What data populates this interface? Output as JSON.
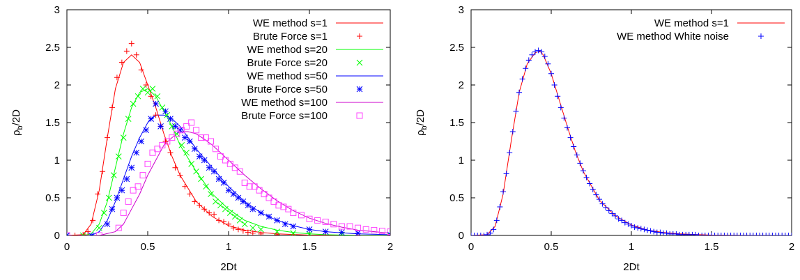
{
  "chart_data": [
    {
      "type": "line",
      "title": "",
      "xlabel": "2Dt",
      "ylabel_main": "ρ",
      "ylabel_sub": "b",
      "ylabel_tail": "/2D",
      "xlim": [
        0,
        2
      ],
      "ylim": [
        0,
        3
      ],
      "xticks": [
        "0",
        "0.5",
        "1",
        "1.5",
        "2"
      ],
      "yticks": [
        "0",
        "0.5",
        "1",
        "1.5",
        "2",
        "2.5",
        "3"
      ],
      "grid": false,
      "legend_position": "top-right",
      "series": [
        {
          "name": "WE method s=1",
          "kind": "line",
          "color": "#ff0000",
          "x": [
            0,
            0.1,
            0.15,
            0.2,
            0.25,
            0.3,
            0.35,
            0.4,
            0.45,
            0.5,
            0.55,
            0.6,
            0.65,
            0.7,
            0.8,
            0.9,
            1.0,
            1.1,
            1.2,
            1.3,
            1.5,
            1.7,
            2.0
          ],
          "y": [
            0,
            0.01,
            0.15,
            0.6,
            1.3,
            1.95,
            2.3,
            2.4,
            2.3,
            2.0,
            1.7,
            1.35,
            1.05,
            0.8,
            0.45,
            0.25,
            0.13,
            0.07,
            0.04,
            0.02,
            0.005,
            0.001,
            0
          ]
        },
        {
          "name": "Brute Force s=1",
          "kind": "plus",
          "color": "#ff0000",
          "x": [
            0,
            0.05,
            0.1,
            0.13,
            0.16,
            0.19,
            0.22,
            0.25,
            0.28,
            0.31,
            0.34,
            0.37,
            0.4,
            0.43,
            0.46,
            0.49,
            0.52,
            0.55,
            0.58,
            0.61,
            0.64,
            0.67,
            0.7,
            0.73,
            0.76,
            0.79,
            0.82,
            0.85,
            0.88,
            0.91,
            0.94,
            0.97,
            1.0,
            1.03,
            1.06,
            1.09,
            1.12,
            1.15,
            1.2,
            1.3,
            1.4,
            1.6,
            1.8,
            2.0
          ],
          "y": [
            0,
            0,
            0.01,
            0.05,
            0.2,
            0.55,
            0.85,
            1.3,
            1.7,
            2.1,
            2.3,
            2.45,
            2.55,
            2.4,
            2.2,
            2.0,
            1.85,
            1.6,
            1.45,
            1.25,
            1.1,
            0.9,
            0.8,
            0.65,
            0.55,
            0.45,
            0.4,
            0.35,
            0.3,
            0.28,
            0.2,
            0.18,
            0.15,
            0.1,
            0.08,
            0.06,
            0.04,
            0.03,
            0.02,
            0.01,
            0,
            0,
            0,
            0
          ]
        },
        {
          "name": "WE method s=20",
          "kind": "line",
          "color": "#00ff00",
          "x": [
            0,
            0.1,
            0.15,
            0.2,
            0.25,
            0.3,
            0.35,
            0.4,
            0.45,
            0.5,
            0.55,
            0.6,
            0.65,
            0.7,
            0.8,
            0.9,
            1.0,
            1.1,
            1.2,
            1.3,
            1.4,
            1.5,
            1.6,
            1.8,
            2.0
          ],
          "y": [
            0,
            0,
            0.02,
            0.15,
            0.45,
            0.9,
            1.35,
            1.7,
            1.9,
            1.95,
            1.85,
            1.65,
            1.45,
            1.2,
            0.85,
            0.55,
            0.35,
            0.2,
            0.12,
            0.07,
            0.04,
            0.02,
            0.01,
            0,
            0
          ]
        },
        {
          "name": "Brute Force s=20",
          "kind": "x",
          "color": "#00ff00",
          "x": [
            0,
            0.1,
            0.2,
            0.23,
            0.26,
            0.29,
            0.32,
            0.35,
            0.38,
            0.41,
            0.44,
            0.47,
            0.5,
            0.53,
            0.56,
            0.59,
            0.62,
            0.65,
            0.68,
            0.71,
            0.74,
            0.77,
            0.8,
            0.83,
            0.86,
            0.89,
            0.92,
            0.95,
            0.98,
            1.01,
            1.04,
            1.07,
            1.1,
            1.15,
            1.2,
            1.3,
            1.4,
            1.5,
            1.7,
            2.0
          ],
          "y": [
            0,
            0,
            0.1,
            0.3,
            0.5,
            0.8,
            1.05,
            1.3,
            1.55,
            1.75,
            1.85,
            1.95,
            1.9,
            1.95,
            1.85,
            1.7,
            1.6,
            1.45,
            1.35,
            1.2,
            1.1,
            0.95,
            0.85,
            0.75,
            0.65,
            0.55,
            0.45,
            0.4,
            0.35,
            0.3,
            0.25,
            0.2,
            0.15,
            0.1,
            0.08,
            0.05,
            0.03,
            0.02,
            0.01,
            0
          ]
        },
        {
          "name": "WE method s=50",
          "kind": "line",
          "color": "#0000ff",
          "x": [
            0,
            0.15,
            0.2,
            0.25,
            0.3,
            0.35,
            0.4,
            0.45,
            0.5,
            0.55,
            0.6,
            0.65,
            0.7,
            0.75,
            0.8,
            0.9,
            1.0,
            1.1,
            1.2,
            1.3,
            1.4,
            1.5,
            1.6,
            1.8,
            2.0
          ],
          "y": [
            0,
            0,
            0.05,
            0.2,
            0.45,
            0.75,
            1.05,
            1.3,
            1.5,
            1.6,
            1.6,
            1.55,
            1.45,
            1.3,
            1.15,
            0.9,
            0.65,
            0.45,
            0.3,
            0.2,
            0.13,
            0.08,
            0.05,
            0.02,
            0.01
          ]
        },
        {
          "name": "Brute Force s=50",
          "kind": "star",
          "color": "#0000ff",
          "x": [
            0,
            0.15,
            0.25,
            0.28,
            0.31,
            0.34,
            0.37,
            0.4,
            0.43,
            0.46,
            0.49,
            0.52,
            0.55,
            0.58,
            0.61,
            0.64,
            0.67,
            0.7,
            0.73,
            0.76,
            0.79,
            0.82,
            0.85,
            0.88,
            0.91,
            0.94,
            0.97,
            1.0,
            1.03,
            1.06,
            1.09,
            1.12,
            1.15,
            1.2,
            1.25,
            1.3,
            1.35,
            1.4,
            1.5,
            1.6,
            1.7,
            1.8,
            2.0
          ],
          "y": [
            0,
            0,
            0.15,
            0.35,
            0.5,
            0.6,
            0.75,
            0.9,
            1.1,
            1.25,
            1.4,
            1.55,
            1.75,
            1.45,
            1.65,
            1.55,
            1.45,
            1.4,
            1.3,
            1.25,
            1.15,
            1.05,
            1.0,
            0.9,
            0.85,
            0.75,
            0.7,
            0.6,
            0.55,
            0.5,
            0.45,
            0.4,
            0.35,
            0.3,
            0.25,
            0.2,
            0.15,
            0.12,
            0.08,
            0.05,
            0.04,
            0.03,
            0.01
          ]
        },
        {
          "name": "WE method s=100",
          "kind": "line",
          "color": "#cc00cc",
          "x": [
            0,
            0.2,
            0.3,
            0.35,
            0.4,
            0.45,
            0.5,
            0.55,
            0.6,
            0.65,
            0.7,
            0.75,
            0.8,
            0.85,
            0.9,
            1.0,
            1.1,
            1.2,
            1.3,
            1.4,
            1.5,
            1.6,
            1.7,
            1.8,
            2.0
          ],
          "y": [
            0,
            0,
            0.05,
            0.15,
            0.35,
            0.55,
            0.8,
            1.0,
            1.2,
            1.3,
            1.38,
            1.38,
            1.35,
            1.28,
            1.2,
            1.0,
            0.8,
            0.62,
            0.46,
            0.33,
            0.23,
            0.16,
            0.11,
            0.07,
            0.03
          ]
        },
        {
          "name": "Brute Force s=100",
          "kind": "square",
          "color": "#ff44ff",
          "x": [
            0,
            0.2,
            0.32,
            0.35,
            0.38,
            0.41,
            0.44,
            0.47,
            0.5,
            0.53,
            0.56,
            0.59,
            0.62,
            0.65,
            0.68,
            0.71,
            0.74,
            0.77,
            0.8,
            0.83,
            0.86,
            0.89,
            0.92,
            0.95,
            0.98,
            1.01,
            1.04,
            1.07,
            1.1,
            1.13,
            1.16,
            1.19,
            1.22,
            1.25,
            1.28,
            1.31,
            1.34,
            1.37,
            1.4,
            1.45,
            1.5,
            1.55,
            1.6,
            1.65,
            1.7,
            1.75,
            1.8,
            1.85,
            1.9,
            1.95,
            2.0
          ],
          "y": [
            0,
            0,
            0.1,
            0.3,
            0.45,
            0.6,
            0.65,
            0.8,
            0.95,
            1.1,
            1.15,
            1.2,
            1.25,
            1.3,
            1.35,
            1.4,
            1.45,
            1.5,
            1.4,
            1.3,
            1.3,
            1.25,
            1.15,
            1.05,
            1.0,
            0.95,
            0.9,
            0.85,
            0.7,
            0.65,
            0.65,
            0.6,
            0.55,
            0.5,
            0.45,
            0.4,
            0.38,
            0.35,
            0.3,
            0.27,
            0.22,
            0.2,
            0.18,
            0.15,
            0.12,
            0.12,
            0.1,
            0.08,
            0.07,
            0.06,
            0.05
          ]
        }
      ]
    },
    {
      "type": "line",
      "title": "",
      "xlabel": "2Dt",
      "ylabel_main": "ρ",
      "ylabel_sub": "b",
      "ylabel_tail": "/2D",
      "xlim": [
        0,
        2
      ],
      "ylim": [
        0,
        3
      ],
      "xticks": [
        "0",
        "0.5",
        "1",
        "1.5",
        "2"
      ],
      "yticks": [
        "0",
        "0.5",
        "1",
        "1.5",
        "2",
        "2.5",
        "3"
      ],
      "grid": false,
      "legend_position": "top-right",
      "series": [
        {
          "name": "WE method s=1",
          "kind": "line",
          "color": "#ff0000",
          "x": [
            0,
            0.1,
            0.15,
            0.2,
            0.25,
            0.3,
            0.35,
            0.4,
            0.43,
            0.45,
            0.5,
            0.55,
            0.6,
            0.65,
            0.7,
            0.8,
            0.9,
            1.0,
            1.1,
            1.2,
            1.3,
            1.5,
            1.7,
            2.0
          ],
          "y": [
            0,
            0.01,
            0.12,
            0.55,
            1.25,
            1.9,
            2.28,
            2.43,
            2.45,
            2.4,
            2.15,
            1.8,
            1.45,
            1.12,
            0.85,
            0.47,
            0.26,
            0.14,
            0.07,
            0.04,
            0.02,
            0.005,
            0.001,
            0
          ]
        },
        {
          "name": "WE method White noise",
          "kind": "plus",
          "color": "#0000ff",
          "x": [
            0,
            0.02,
            0.04,
            0.06,
            0.08,
            0.1,
            0.12,
            0.14,
            0.16,
            0.18,
            0.2,
            0.22,
            0.24,
            0.26,
            0.28,
            0.3,
            0.32,
            0.34,
            0.36,
            0.38,
            0.4,
            0.42,
            0.44,
            0.46,
            0.48,
            0.5,
            0.52,
            0.54,
            0.56,
            0.58,
            0.6,
            0.62,
            0.64,
            0.66,
            0.68,
            0.7,
            0.72,
            0.74,
            0.76,
            0.78,
            0.8,
            0.82,
            0.84,
            0.86,
            0.88,
            0.9,
            0.92,
            0.94,
            0.96,
            0.98,
            1.0,
            1.02,
            1.04,
            1.06,
            1.08,
            1.1,
            1.12,
            1.14,
            1.16,
            1.18,
            1.2,
            1.22,
            1.24,
            1.26,
            1.28,
            1.3,
            1.32,
            1.34,
            1.36,
            1.38,
            1.4,
            1.42,
            1.44,
            1.46,
            1.48,
            1.5,
            1.52,
            1.54,
            1.56,
            1.58,
            1.6,
            1.62,
            1.64,
            1.66,
            1.68,
            1.7,
            1.72,
            1.74,
            1.76,
            1.78,
            1.8,
            1.82,
            1.84,
            1.86,
            1.88,
            1.9,
            1.92,
            1.94,
            1.96,
            1.98,
            2.0
          ],
          "y": [
            0,
            0,
            0,
            0,
            0,
            0.01,
            0.03,
            0.08,
            0.2,
            0.38,
            0.58,
            0.82,
            1.1,
            1.38,
            1.65,
            1.9,
            2.08,
            2.22,
            2.33,
            2.4,
            2.44,
            2.46,
            2.44,
            2.38,
            2.28,
            2.15,
            2.0,
            1.85,
            1.7,
            1.56,
            1.43,
            1.3,
            1.18,
            1.07,
            0.96,
            0.86,
            0.77,
            0.69,
            0.61,
            0.54,
            0.48,
            0.42,
            0.37,
            0.33,
            0.29,
            0.26,
            0.22,
            0.2,
            0.17,
            0.15,
            0.13,
            0.11,
            0.1,
            0.09,
            0.08,
            0.07,
            0.06,
            0.05,
            0.04,
            0.04,
            0.03,
            0.03,
            0.02,
            0.02,
            0.02,
            0.01,
            0.01,
            0.01,
            0.01,
            0.01,
            0.01,
            0,
            0,
            0,
            0,
            0,
            0,
            0,
            0,
            0,
            0,
            0,
            0,
            0,
            0,
            0,
            0,
            0,
            0,
            0,
            0,
            0,
            0,
            0,
            0,
            0,
            0,
            0,
            0,
            0,
            0
          ]
        }
      ]
    }
  ]
}
